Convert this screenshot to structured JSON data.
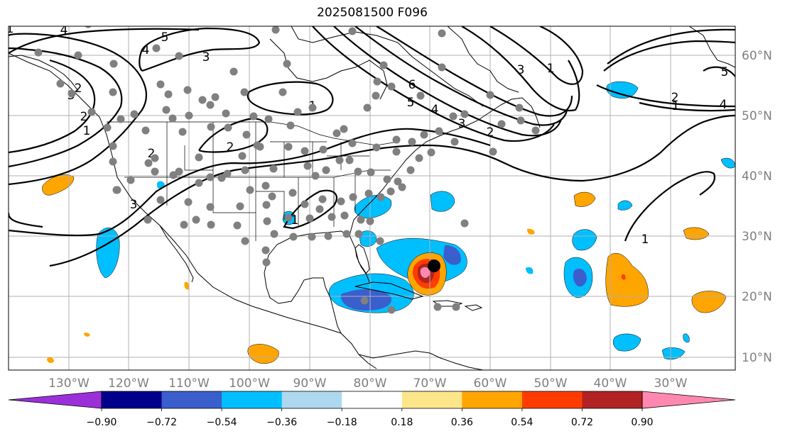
{
  "title": "2025081500 F096",
  "map": {
    "longitude_ticks": [
      "130°W",
      "120°W",
      "110°W",
      "100°W",
      "90°W",
      "80°W",
      "70°W",
      "60°W",
      "50°W",
      "40°W",
      "30°W"
    ],
    "latitude_ticks": [
      "60°N",
      "50°N",
      "40°N",
      "30°N",
      "20°N",
      "10°N"
    ],
    "gridline_color": "#b0b0b0",
    "land_outline_color": "#000000",
    "station_marker_color": "#808080",
    "storm_marker_color": "#000000"
  },
  "colorbar": {
    "levels": [
      "−0.90",
      "−0.72",
      "−0.54",
      "−0.36",
      "−0.18",
      "0.18",
      "0.36",
      "0.54",
      "0.72",
      "0.90"
    ],
    "colors": [
      "#9b30d8",
      "#00008b",
      "#3a5fcd",
      "#00bfff",
      "#add8f0",
      "#ffffff",
      "#fde68a",
      "#ffa500",
      "#ff3c00",
      "#b22222",
      "#ff88b0"
    ]
  },
  "contours": {
    "labels": [
      "5",
      "4",
      "3",
      "2",
      "1",
      "4",
      "3",
      "2",
      "1",
      "6",
      "5",
      "4",
      "3",
      "2",
      "1",
      "3",
      "2",
      "1",
      "5",
      "4",
      "3",
      "2",
      "1",
      "1",
      "2",
      "1"
    ]
  }
}
